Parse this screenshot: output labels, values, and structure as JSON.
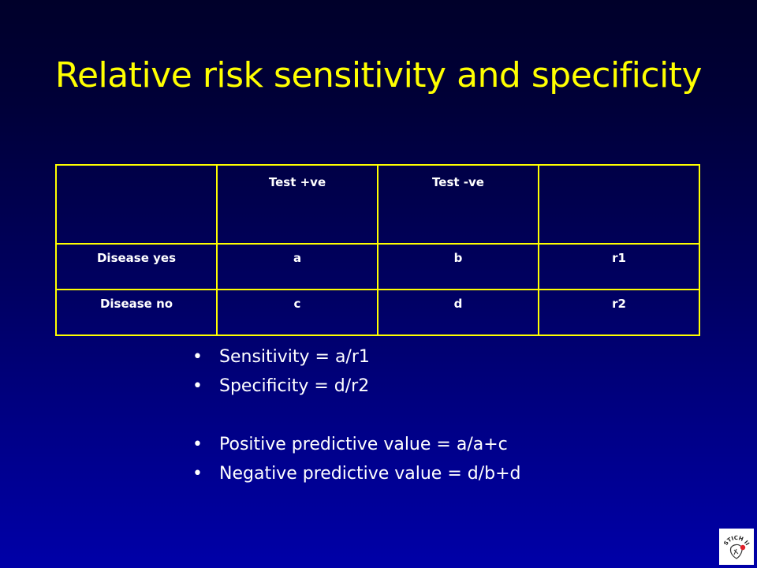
{
  "slide": {
    "title": "Relative risk sensitivity and specificity"
  },
  "table": {
    "header": [
      "",
      "Test +ve",
      "Test -ve",
      ""
    ],
    "rows": [
      [
        "Disease yes",
        "a",
        "b",
        "r1"
      ],
      [
        "Disease no",
        "c",
        "d",
        "r2"
      ]
    ]
  },
  "bullets": [
    "Sensitivity = a/r1",
    "Specificity = d/r2",
    "Positive predictive value = a/a+c",
    "Negative predictive value = d/b+d"
  ],
  "bullet_glyph": "•",
  "logo": {
    "text": "STICH II"
  },
  "colors": {
    "title": "#ffff00",
    "table_border": "#ffff00",
    "text": "#ffffff",
    "background_top": "#00002a",
    "background_bottom": "#0000a8",
    "logo_accent": "#e0202a"
  }
}
